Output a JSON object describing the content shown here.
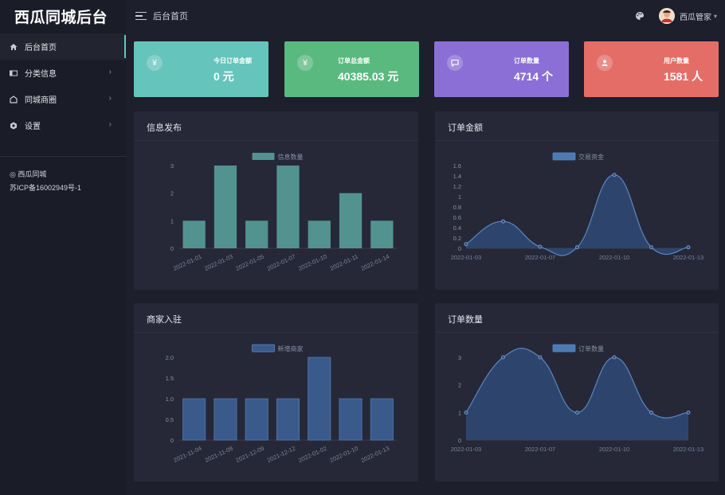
{
  "brand": "西瓜同城后台",
  "sidebar": {
    "items": [
      {
        "label": "后台首页",
        "icon": "home-icon"
      },
      {
        "label": "分类信息",
        "icon": "category-icon"
      },
      {
        "label": "同城商圈",
        "icon": "store-icon"
      },
      {
        "label": "设置",
        "icon": "gear-icon"
      }
    ],
    "footer_name": "◎ 西瓜同城",
    "footer_icp": "苏ICP备16002949号-1"
  },
  "header": {
    "title": "后台首页",
    "user": "西瓜管家"
  },
  "stats": [
    {
      "label": "今日订单金额",
      "value": "0 元",
      "color": "#65c4bc",
      "icon": "yen-icon",
      "glyph": "¥"
    },
    {
      "label": "订单总金额",
      "value": "40385.03 元",
      "color": "#5ab97f",
      "icon": "yen-icon",
      "glyph": "¥"
    },
    {
      "label": "订单数量",
      "value": "4714 个",
      "color": "#8b6fd6",
      "icon": "message-icon",
      "glyph": "▭"
    },
    {
      "label": "用户数量",
      "value": "1581 人",
      "color": "#e46e67",
      "icon": "user-icon",
      "glyph": "●"
    }
  ],
  "panels": {
    "info": "信息发布",
    "amount": "订单金额",
    "merchant": "商家入驻",
    "orders": "订单数量"
  },
  "chart_data": [
    {
      "id": "info",
      "type": "bar",
      "title": "信息发布",
      "legend": "信息数量",
      "color": "#52938f",
      "categories": [
        "2022-01-01",
        "2022-01-03",
        "2022-01-05",
        "2022-01-07",
        "2022-01-10",
        "2022-01-11",
        "2022-01-14"
      ],
      "values": [
        1,
        3,
        1,
        3,
        1,
        2,
        1
      ],
      "ylim": [
        0,
        3
      ],
      "yticks": [
        "0",
        "1",
        "2",
        "3"
      ]
    },
    {
      "id": "amount",
      "type": "area",
      "title": "订单金额",
      "legend": "交易资金",
      "color": "#4d7ab3",
      "x": [
        "2022-01-03",
        "",
        "2022-01-07",
        "",
        "2022-01-10",
        "",
        "2022-01-13"
      ],
      "values": [
        0.08,
        0.52,
        0.03,
        0.02,
        1.42,
        0.02,
        0.02
      ],
      "ylim": [
        0,
        1.6
      ],
      "yticks": [
        "0",
        "0.2",
        "0.4",
        "0.6",
        "0.8",
        "1",
        "1.2",
        "1.4",
        "1.6"
      ]
    },
    {
      "id": "merchant",
      "type": "bar",
      "title": "商家入驻",
      "legend": "新增商家",
      "color": "#3a5a8c",
      "categories": [
        "2021-11-04",
        "2021-11-08",
        "2021-12-09",
        "2021-12-12",
        "2022-01-02",
        "2022-01-10",
        "2022-01-13"
      ],
      "values": [
        1,
        1,
        1,
        1,
        2,
        1,
        1
      ],
      "ylim": [
        0,
        2
      ],
      "yticks": [
        "0",
        "0.5",
        "1.0",
        "1.5",
        "2.0"
      ]
    },
    {
      "id": "orders",
      "type": "area",
      "title": "订单数量",
      "legend": "订单数量",
      "color": "#4d7ab3",
      "x": [
        "2022-01-03",
        "",
        "2022-01-07",
        "",
        "2022-01-10",
        "",
        "2022-01-13"
      ],
      "values": [
        1,
        3,
        3,
        1,
        3,
        1,
        1
      ],
      "ylim": [
        0,
        3
      ],
      "yticks": [
        "0",
        "1",
        "2",
        "3"
      ]
    }
  ]
}
